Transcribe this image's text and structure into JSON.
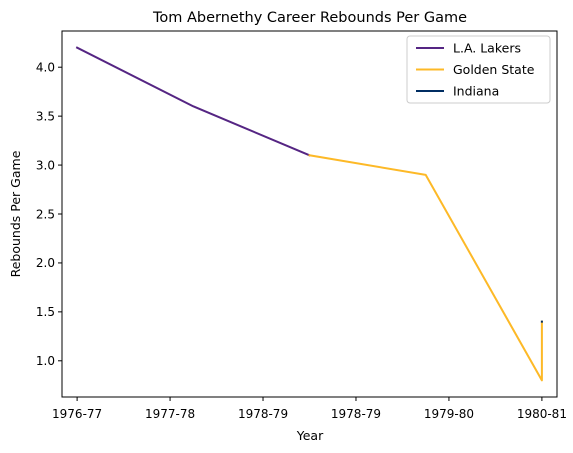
{
  "chart_data": {
    "type": "line",
    "title": "Tom Abernethy Career Rebounds Per Game",
    "xlabel": "Year",
    "ylabel": "Rebounds Per Game",
    "x_ticks": [
      "1976-77",
      "1977-78",
      "1978-79",
      "1978-79",
      "1979-80",
      "1980-81"
    ],
    "xlim": [
      -0.13,
      4.13
    ],
    "ylim": [
      0.63,
      4.37
    ],
    "y_ticks": [
      1.0,
      1.5,
      2.0,
      2.5,
      3.0,
      3.5,
      4.0
    ],
    "legend_position": "upper-right",
    "grid": false,
    "series": [
      {
        "name": "L.A. Lakers",
        "color": "#552583",
        "points": [
          [
            0,
            4.2
          ],
          [
            1,
            3.6
          ],
          [
            2,
            3.1
          ]
        ]
      },
      {
        "name": "Golden State",
        "color": "#FDB927",
        "points": [
          [
            2,
            3.1
          ],
          [
            3,
            2.9
          ],
          [
            4,
            0.8
          ],
          [
            4,
            1.4
          ]
        ]
      },
      {
        "name": "Indiana",
        "color": "#002D62",
        "points": [
          [
            4,
            1.4
          ],
          [
            4,
            1.4
          ]
        ]
      }
    ]
  }
}
